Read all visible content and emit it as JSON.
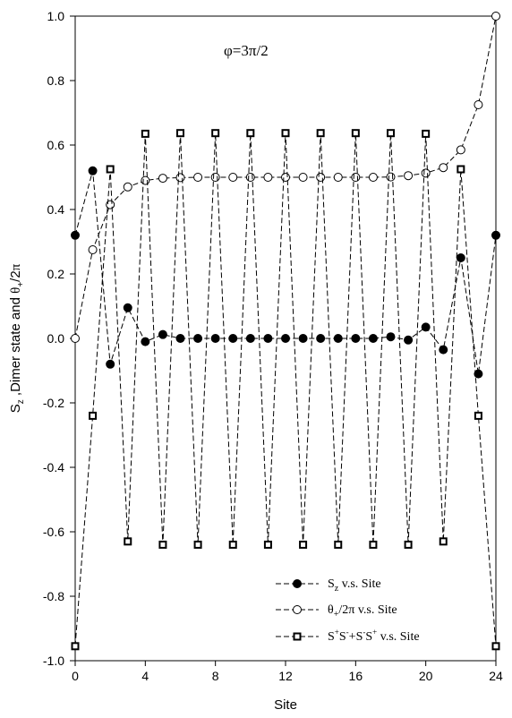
{
  "chart_data": {
    "type": "line",
    "annotation": "φ=3π/2",
    "xlabel": "Site",
    "ylabel": "S_z ,Dimer state and  θ_+ /2π",
    "xlim": [
      0,
      24
    ],
    "ylim": [
      -1.0,
      1.0
    ],
    "x_ticks": [
      "0",
      "4",
      "8",
      "12",
      "16",
      "20",
      "24"
    ],
    "y_ticks": [
      "-1.0",
      "-0.8",
      "-0.6",
      "-0.4",
      "-0.2",
      "0.0",
      "0.2",
      "0.4",
      "0.6",
      "0.8",
      "1.0"
    ],
    "x": [
      0,
      1,
      2,
      3,
      4,
      5,
      6,
      7,
      8,
      9,
      10,
      11,
      12,
      13,
      14,
      15,
      16,
      17,
      18,
      19,
      20,
      21,
      22,
      23,
      24
    ],
    "legend_position": "bottom-right",
    "grid": false,
    "series": [
      {
        "name": "S_z v.s. Site",
        "legend_label": "Sz v.s. Site",
        "marker": "filled-circle",
        "values": [
          0.32,
          0.52,
          -0.08,
          0.095,
          -0.01,
          0.012,
          0.0,
          0.0,
          0.0,
          0.0,
          0.0,
          0.0,
          0.0,
          0.0,
          0.0,
          0.0,
          0.0,
          0.0,
          0.005,
          -0.005,
          0.035,
          -0.035,
          0.25,
          -0.11,
          0.32
        ]
      },
      {
        "name": "θ+/2π v.s. Site",
        "legend_label": "θ+/2π  v.s. Site",
        "marker": "open-circle",
        "values": [
          0.0,
          0.275,
          0.415,
          0.47,
          0.49,
          0.497,
          0.499,
          0.5,
          0.5,
          0.5,
          0.5,
          0.5,
          0.5,
          0.5,
          0.5,
          0.5,
          0.5,
          0.5,
          0.501,
          0.505,
          0.513,
          0.53,
          0.585,
          0.725,
          1.0
        ]
      },
      {
        "name": "S+S- + S-S+ v.s. Site",
        "legend_label": "S+S-+S-S+ v.s. Site",
        "marker": "open-square",
        "values": [
          -0.955,
          -0.24,
          0.525,
          -0.63,
          0.635,
          -0.64,
          0.637,
          -0.64,
          0.637,
          -0.64,
          0.637,
          -0.64,
          0.637,
          -0.64,
          0.637,
          -0.64,
          0.637,
          -0.64,
          0.637,
          -0.64,
          0.635,
          -0.63,
          0.525,
          -0.24,
          -0.955
        ]
      }
    ]
  }
}
